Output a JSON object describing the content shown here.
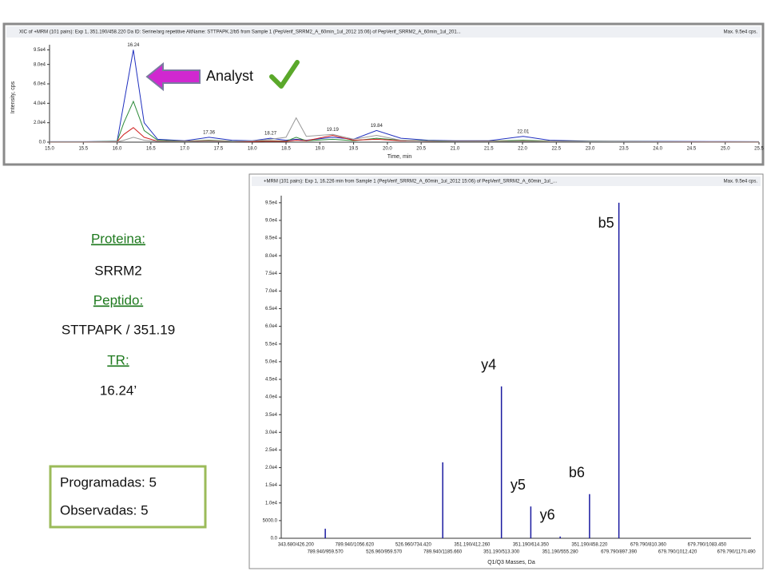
{
  "chart_data": [
    {
      "type": "line",
      "title": "XIC of +MRM (101 pairs): Exp 1, 351.190/458.220 Da ID: Serine/arg repetitive AltName: STTPAPK.2/b5 from Sample 1 (PepVerif_SRRM2_A_60min_1ul_2012 15:06) of PepVerif_SRRM2_A_60min_1ul_201...",
      "max_label": "Max. 9.5e4 cps.",
      "x_label": "Time, min",
      "y_label": "Intensity, cps",
      "x": [
        15.0,
        15.5,
        16.0,
        16.1,
        16.24,
        16.4,
        16.6,
        17.0,
        17.36,
        17.7,
        18.0,
        18.27,
        18.5,
        18.65,
        18.8,
        19.19,
        19.5,
        19.84,
        20.2,
        20.6,
        21.0,
        21.5,
        22.01,
        22.4,
        23.0,
        24.0,
        25.0,
        25.5
      ],
      "series": [
        {
          "color": "#1f2fbf",
          "values": [
            500,
            500,
            1000,
            40000,
            95000,
            20000,
            3000,
            1500,
            5000,
            2000,
            1500,
            4000,
            2000,
            3000,
            2000,
            5000,
            3000,
            12000,
            4000,
            2000,
            1500,
            1500,
            6000,
            2000,
            1000,
            800,
            600,
            500
          ]
        },
        {
          "color": "#2e8b3a",
          "values": [
            300,
            300,
            800,
            20000,
            42000,
            12000,
            2000,
            1000,
            2000,
            1000,
            800,
            1500,
            1000,
            5000,
            1500,
            3000,
            1500,
            4000,
            2000,
            1500,
            1000,
            1000,
            2000,
            1000,
            800,
            500,
            400,
            300
          ]
        },
        {
          "color": "#d02020",
          "values": [
            200,
            200,
            500,
            8000,
            15000,
            5000,
            1000,
            800,
            1500,
            800,
            600,
            1000,
            800,
            2000,
            1500,
            7000,
            2000,
            3000,
            1500,
            1000,
            800,
            700,
            1000,
            600,
            500,
            400,
            300,
            200
          ]
        },
        {
          "color": "#9a9a9a",
          "values": [
            200,
            200,
            300,
            2000,
            5000,
            2000,
            800,
            600,
            1000,
            800,
            1200,
            3000,
            5000,
            25000,
            6000,
            8000,
            3000,
            7000,
            2000,
            1000,
            600,
            500,
            800,
            500,
            400,
            300,
            200,
            200
          ]
        }
      ],
      "annotations": [
        {
          "text": "16.24",
          "x": 16.24,
          "y": 95000
        },
        {
          "text": "17.36",
          "x": 17.36,
          "y": 5000
        },
        {
          "text": "18.27",
          "x": 18.27,
          "y": 4000
        },
        {
          "text": "19.19",
          "x": 19.19,
          "y": 8000
        },
        {
          "text": "19.84",
          "x": 19.84,
          "y": 12000
        },
        {
          "text": "22.01",
          "x": 22.01,
          "y": 6000
        }
      ],
      "xlim": [
        15.0,
        25.5
      ],
      "xticks": [
        {
          "value": 15,
          "label": "15.0"
        },
        15.5,
        {
          "value": 16,
          "label": "16.0"
        },
        16.5,
        {
          "value": 17,
          "label": "17.0"
        },
        17.5,
        {
          "value": 18,
          "label": "18.0"
        },
        18.5,
        {
          "value": 19,
          "label": "19.0"
        },
        19.5,
        {
          "value": 20,
          "label": "20.0"
        },
        20.5,
        {
          "value": 21,
          "label": "21.0"
        },
        21.5,
        {
          "value": 22,
          "label": "22.0"
        },
        22.5,
        {
          "value": 23,
          "label": "23.0"
        },
        23.5,
        {
          "value": 24,
          "label": "24.0"
        },
        24.5,
        {
          "value": 25,
          "label": "25.0"
        },
        25.5
      ],
      "ylim": [
        0,
        97000
      ],
      "yticks": [
        {
          "value": 0,
          "label": "0.0"
        },
        {
          "value": 20000,
          "label": "2.0e4"
        },
        {
          "value": 40000,
          "label": "4.0e4"
        },
        {
          "value": 60000,
          "label": "6.0e4"
        },
        {
          "value": 80000,
          "label": "8.0e4"
        },
        {
          "value": 95000,
          "label": "9.5e4"
        }
      ],
      "callout": "Analyst"
    },
    {
      "type": "bar",
      "title": "+MRM (101 pairs): Exp 1, 16.226 min from Sample 1 (PepVerif_SRRM2_A_60min_1ul_2012 15:06) of PepVerif_SRRM2_A_60min_1ul_...",
      "max_label": "Max. 9.5e4 cps.",
      "x_label": "Q1/Q3 Masses, Da",
      "color": "#1a1aa0",
      "categories": [
        "343.680/426.200",
        "789.940/959.570",
        "789.940/1056.620",
        "526.960/959.570",
        "526.960/734.420",
        "789.940/1185.660",
        "351.190/412.260",
        "351.190/513.300",
        "351.190/614.350",
        "351.190/555.280",
        "351.190/458.220",
        "679.790/897.390",
        "679.790/810.360",
        "679.790/1012.420",
        "679.790/1083.450",
        "679.790/1170.490"
      ],
      "values": [
        0,
        2700,
        0,
        0,
        0,
        21500,
        0,
        43000,
        9000,
        500,
        12500,
        95000,
        0,
        0,
        0,
        0
      ],
      "bar_labels": [
        null,
        null,
        null,
        null,
        null,
        null,
        null,
        "y4",
        "y5",
        "y6",
        "b6",
        "b5",
        null,
        null,
        null,
        null
      ],
      "ylim": [
        0,
        97000
      ],
      "yticks": [
        {
          "value": 0,
          "label": "0.0"
        },
        {
          "value": 5000,
          "label": "5000.0"
        },
        {
          "value": 10000,
          "label": "1.0e4"
        },
        {
          "value": 15000,
          "label": "1.5e4"
        },
        {
          "value": 20000,
          "label": "2.0e4"
        },
        {
          "value": 25000,
          "label": "2.5e4"
        },
        {
          "value": 30000,
          "label": "3.0e4"
        },
        {
          "value": 35000,
          "label": "3.5e4"
        },
        {
          "value": 40000,
          "label": "4.0e4"
        },
        {
          "value": 45000,
          "label": "4.5e4"
        },
        {
          "value": 50000,
          "label": "5.0e4"
        },
        {
          "value": 55000,
          "label": "5.5e4"
        },
        {
          "value": 60000,
          "label": "6.0e4"
        },
        {
          "value": 65000,
          "label": "6.5e4"
        },
        {
          "value": 70000,
          "label": "7.0e4"
        },
        {
          "value": 75000,
          "label": "7.5e4"
        },
        {
          "value": 80000,
          "label": "8.0e4"
        },
        {
          "value": 85000,
          "label": "8.5e4"
        },
        {
          "value": 90000,
          "label": "9.0e4"
        },
        {
          "value": 95000,
          "label": "9.5e4"
        }
      ]
    }
  ],
  "info": {
    "protein_heading": "Proteina:",
    "protein": "SRRM2",
    "peptide_heading": "Peptido:",
    "peptide": "STTPAPK / 351.19",
    "rt_heading": "TR:",
    "rt": "16.24’"
  },
  "summary": {
    "programmed": "Programadas: 5",
    "observed": "Observadas: 5"
  }
}
